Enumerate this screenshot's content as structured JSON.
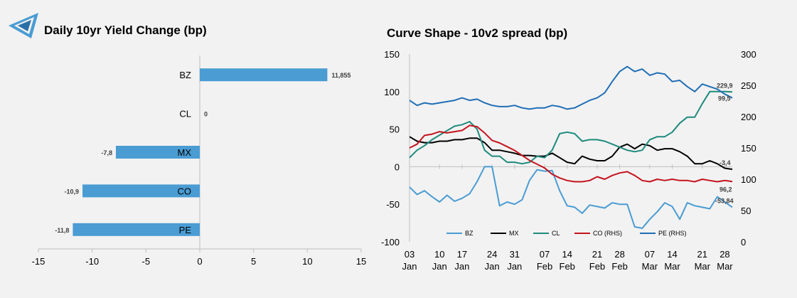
{
  "left": {
    "title": "Daily 10yr Yield Change (bp)",
    "chart_data": {
      "type": "bar",
      "orientation": "horizontal",
      "categories": [
        "BZ",
        "CL",
        "MX",
        "CO",
        "PE"
      ],
      "values": [
        11.855,
        0,
        -7.8,
        -10.9,
        -11.8
      ],
      "data_labels": [
        "11,855",
        "0",
        "-7,8",
        "-10,9",
        "-11,8"
      ],
      "xlim": [
        -15,
        15
      ],
      "x_ticks": [
        -15,
        -10,
        -5,
        0,
        5,
        10,
        15
      ],
      "bar_color": "#4a9cd3"
    }
  },
  "right": {
    "title": "Curve Shape - 10v2 spread (bp)",
    "chart_data": {
      "type": "line",
      "x": [
        "03 Jan",
        "05 Jan",
        "07 Jan",
        "09 Jan",
        "11 Jan",
        "13 Jan",
        "15 Jan",
        "17 Jan",
        "19 Jan",
        "21 Jan",
        "23 Jan",
        "25 Jan",
        "27 Jan",
        "29 Jan",
        "31 Jan",
        "02 Feb",
        "04 Feb",
        "06 Feb",
        "08 Feb",
        "10 Feb",
        "12 Feb",
        "14 Feb",
        "16 Feb",
        "18 Feb",
        "20 Feb",
        "22 Feb",
        "24 Feb",
        "26 Feb",
        "28 Feb",
        "02 Mar",
        "04 Mar",
        "06 Mar",
        "08 Mar",
        "10 Mar",
        "12 Mar",
        "14 Mar",
        "16 Mar",
        "18 Mar",
        "20 Mar",
        "22 Mar",
        "24 Mar",
        "26 Mar",
        "28 Mar",
        "30 Mar"
      ],
      "x_tick_labels": [
        [
          "03",
          "Jan"
        ],
        [
          "10",
          "Jan"
        ],
        [
          "17",
          "Jan"
        ],
        [
          "24",
          "Jan"
        ],
        [
          "31",
          "Jan"
        ],
        [
          "07",
          "Feb"
        ],
        [
          "14",
          "Feb"
        ],
        [
          "21",
          "Feb"
        ],
        [
          "28",
          "Feb"
        ],
        [
          "07",
          "Mar"
        ],
        [
          "14",
          "Mar"
        ],
        [
          "21",
          "Mar"
        ],
        [
          "28",
          "Mar"
        ]
      ],
      "ylim_left": [
        -100,
        150
      ],
      "y_ticks_left": [
        -100,
        -50,
        0,
        50,
        100,
        150
      ],
      "ylim_right": [
        0,
        300
      ],
      "y_ticks_right": [
        0,
        50,
        100,
        150,
        200,
        250,
        300
      ],
      "series": [
        {
          "name": "BZ",
          "axis": "left",
          "color": "#4a9cd3",
          "values": [
            -27,
            -37,
            -32,
            -40,
            -47,
            -38,
            -46,
            -42,
            -36,
            -20,
            0,
            0,
            -52,
            -47,
            -50,
            -44,
            -18,
            -4,
            -6,
            -5,
            -32,
            -52,
            -54,
            -62,
            -51,
            -53,
            -55,
            -48,
            -50,
            -50,
            -80,
            -82,
            -70,
            -60,
            -48,
            -53,
            -70,
            -48,
            -52,
            -54,
            -56,
            -40,
            -47,
            -54
          ]
        },
        {
          "name": "MX",
          "axis": "left",
          "color": "#000000",
          "values": [
            40,
            34,
            32,
            32,
            34,
            34,
            36,
            36,
            38,
            38,
            32,
            22,
            22,
            20,
            18,
            15,
            15,
            14,
            14,
            18,
            12,
            6,
            4,
            14,
            10,
            8,
            8,
            14,
            26,
            30,
            24,
            30,
            28,
            22,
            24,
            24,
            20,
            14,
            4,
            4,
            8,
            4,
            -2,
            -3.4
          ]
        },
        {
          "name": "CL",
          "axis": "left",
          "color": "#1e8a7c",
          "values": [
            12,
            22,
            28,
            36,
            42,
            48,
            54,
            56,
            60,
            50,
            22,
            14,
            14,
            6,
            6,
            4,
            6,
            14,
            12,
            22,
            44,
            46,
            44,
            34,
            36,
            36,
            34,
            30,
            26,
            22,
            20,
            22,
            36,
            40,
            40,
            46,
            58,
            66,
            66,
            84,
            100,
            100,
            100,
            99.5
          ]
        },
        {
          "name": "CO (RHS)",
          "axis": "right",
          "color": "#c4141e",
          "values": [
            150,
            156,
            170,
            172,
            176,
            174,
            176,
            178,
            186,
            184,
            174,
            162,
            158,
            152,
            146,
            138,
            130,
            124,
            118,
            108,
            102,
            98,
            96,
            96,
            98,
            104,
            100,
            106,
            110,
            112,
            106,
            98,
            96,
            100,
            98,
            100,
            98,
            98,
            96,
            100,
            98,
            96,
            98,
            96.2
          ]
        },
        {
          "name": "PE (RHS)",
          "axis": "right",
          "color": "#1f6eb5",
          "values": [
            226,
            218,
            222,
            220,
            222,
            224,
            226,
            230,
            226,
            228,
            222,
            218,
            216,
            216,
            218,
            214,
            212,
            214,
            214,
            218,
            216,
            212,
            214,
            220,
            226,
            230,
            238,
            256,
            272,
            280,
            272,
            276,
            266,
            270,
            268,
            256,
            258,
            248,
            240,
            252,
            248,
            244,
            236,
            229.9
          ]
        }
      ],
      "end_labels": [
        "-3,4",
        "96,2",
        "99,5",
        "229,9",
        "-53,84"
      ],
      "legend_position": "bottom-inside"
    }
  },
  "logo_icon": "stacked-triangles-logo-icon"
}
